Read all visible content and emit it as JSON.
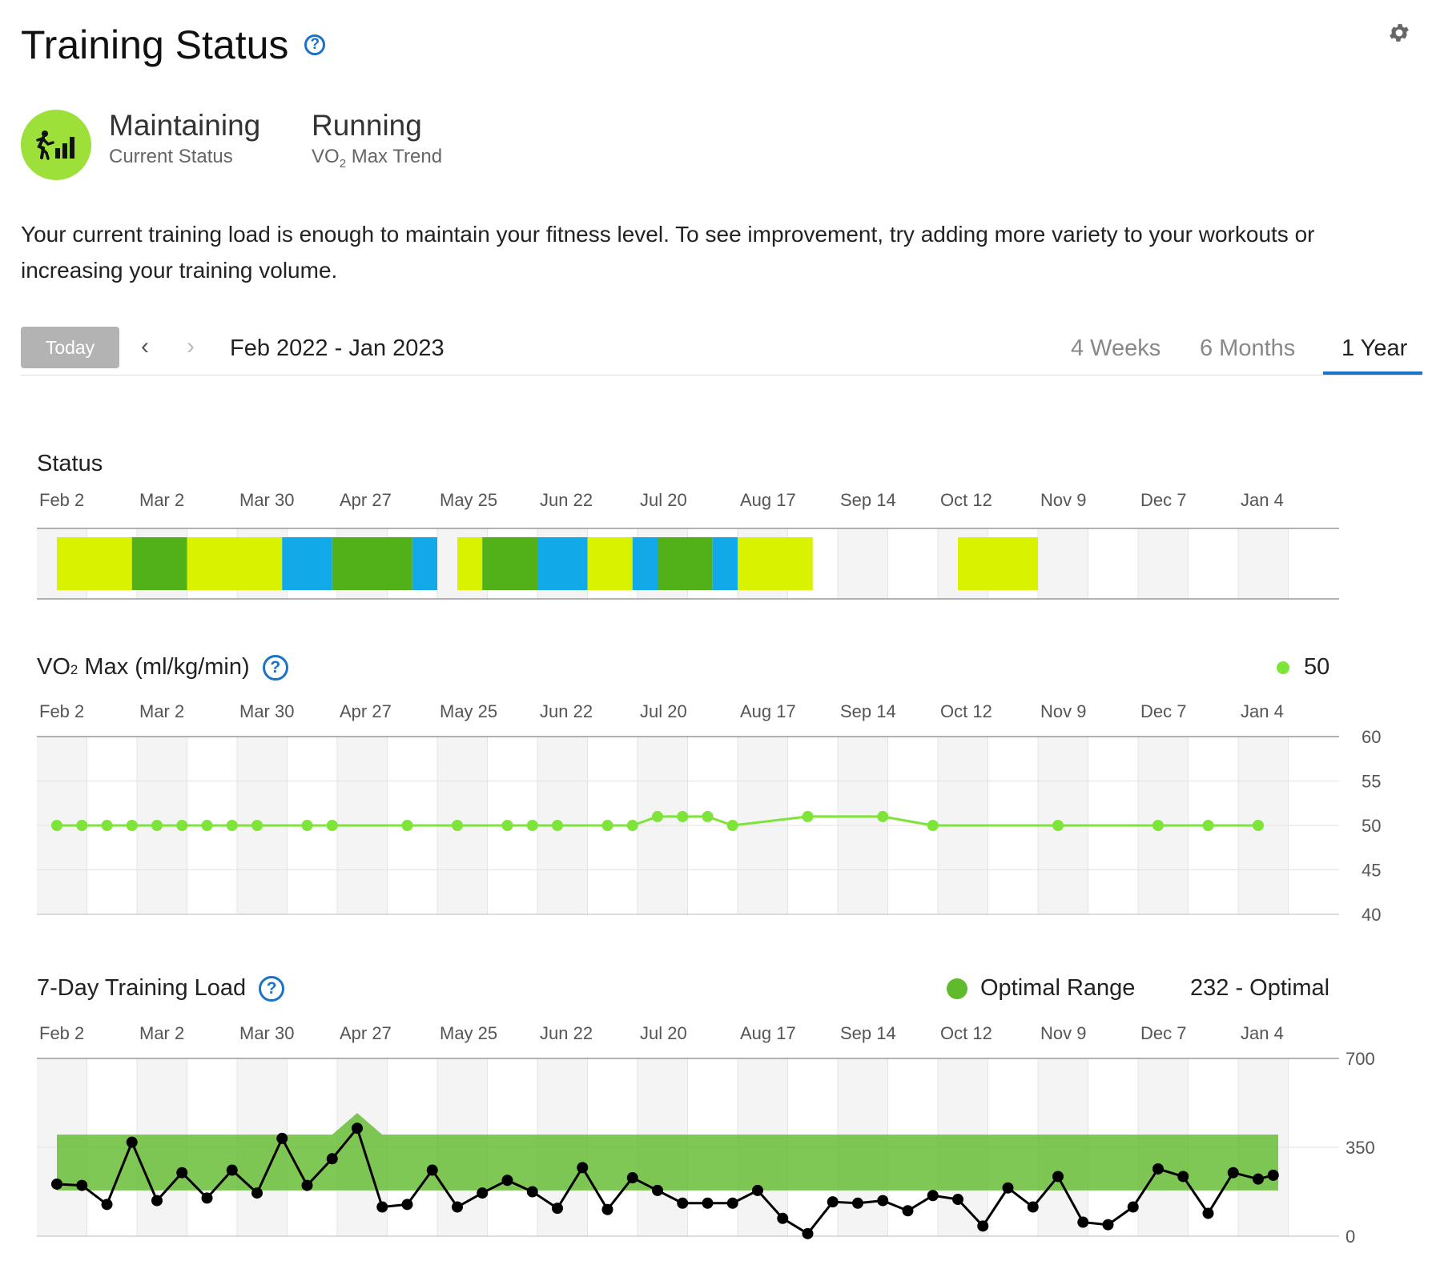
{
  "header": {
    "title": "Training Status",
    "gear_icon": "gear-icon",
    "help_icon": "question-circle-icon"
  },
  "status_summary": {
    "status_value": "Maintaining",
    "status_label": "Current Status",
    "status_icon": "runner-bars-icon",
    "status_color": "#9ee03a",
    "trend_value": "Running",
    "trend_label_prefix": "VO",
    "trend_label_sub": "2",
    "trend_label_suffix": " Max Trend"
  },
  "description": "Your current training load is enough to maintain your fitness level. To see improvement, try adding more variety to your workouts or increasing your training volume.",
  "controls": {
    "today_label": "Today",
    "prev_label": "‹",
    "next_label": "›",
    "range": "Feb 2022 - Jan 2023",
    "tabs": [
      {
        "label": "4 Weeks",
        "active": false
      },
      {
        "label": "6 Months",
        "active": false
      },
      {
        "label": "1 Year",
        "active": true
      }
    ]
  },
  "colors": {
    "accent": "#1a73c7",
    "maintaining": "#d9f200",
    "productive": "#52b018",
    "peaking": "#12a9e8",
    "vo2_line": "#7ee43a",
    "optimal_range": "#5fba2c",
    "load_line": "#000000"
  },
  "sections": {
    "status_title": "Status",
    "vo2_title_prefix": "VO",
    "vo2_title_sub": "2",
    "vo2_title_suffix": " Max (ml/kg/min)",
    "vo2_legend_value": "50",
    "load_title": "7-Day Training Load",
    "load_legend_label": "Optimal Range",
    "load_legend_value": "232 - Optimal"
  },
  "chart_data": [
    {
      "type": "bar",
      "title": "Status",
      "x_ticks": [
        "Feb 2",
        "Mar 2",
        "Mar 30",
        "Apr 27",
        "May 25",
        "Jun 22",
        "Jul 20",
        "Aug 17",
        "Sep 14",
        "Oct 12",
        "Nov 9",
        "Dec 7",
        "Jan 4"
      ],
      "x_unit": "weeks since Feb 2",
      "segments": [
        {
          "start": 0.4,
          "end": 1.9,
          "status": "maintaining"
        },
        {
          "start": 1.9,
          "end": 3.0,
          "status": "productive"
        },
        {
          "start": 3.0,
          "end": 4.9,
          "status": "maintaining"
        },
        {
          "start": 4.9,
          "end": 5.9,
          "status": "peaking"
        },
        {
          "start": 5.9,
          "end": 7.5,
          "status": "productive"
        },
        {
          "start": 7.5,
          "end": 8.0,
          "status": "peaking"
        },
        {
          "start": 8.4,
          "end": 8.9,
          "status": "maintaining"
        },
        {
          "start": 8.9,
          "end": 10.0,
          "status": "productive"
        },
        {
          "start": 10.0,
          "end": 11.0,
          "status": "peaking"
        },
        {
          "start": 11.0,
          "end": 11.9,
          "status": "maintaining"
        },
        {
          "start": 11.9,
          "end": 12.4,
          "status": "peaking"
        },
        {
          "start": 12.4,
          "end": 13.5,
          "status": "productive"
        },
        {
          "start": 13.5,
          "end": 14.0,
          "status": "peaking"
        },
        {
          "start": 14.0,
          "end": 15.5,
          "status": "maintaining"
        },
        {
          "start": 18.4,
          "end": 20.0,
          "status": "maintaining"
        }
      ]
    },
    {
      "type": "line",
      "title": "VO2 Max (ml/kg/min)",
      "x_ticks": [
        "Feb 2",
        "Mar 2",
        "Mar 30",
        "Apr 27",
        "May 25",
        "Jun 22",
        "Jul 20",
        "Aug 17",
        "Sep 14",
        "Oct 12",
        "Nov 9",
        "Dec 7",
        "Jan 4"
      ],
      "x_unit": "weeks since Feb 2",
      "ylim": [
        40,
        60
      ],
      "y_ticks": [
        40,
        45,
        50,
        55,
        60
      ],
      "points": [
        [
          0.4,
          50
        ],
        [
          0.9,
          50
        ],
        [
          1.4,
          50
        ],
        [
          1.9,
          50
        ],
        [
          2.4,
          50
        ],
        [
          2.9,
          50
        ],
        [
          3.4,
          50
        ],
        [
          3.9,
          50
        ],
        [
          4.4,
          50
        ],
        [
          5.4,
          50
        ],
        [
          5.9,
          50
        ],
        [
          7.4,
          50
        ],
        [
          8.4,
          50
        ],
        [
          9.4,
          50
        ],
        [
          9.9,
          50
        ],
        [
          10.4,
          50
        ],
        [
          11.4,
          50
        ],
        [
          11.9,
          50
        ],
        [
          12.4,
          51
        ],
        [
          12.9,
          51
        ],
        [
          13.4,
          51
        ],
        [
          13.9,
          50
        ],
        [
          15.4,
          51
        ],
        [
          16.9,
          51
        ],
        [
          17.9,
          50
        ],
        [
          20.4,
          50
        ],
        [
          22.4,
          50
        ],
        [
          23.4,
          50
        ],
        [
          24.4,
          50
        ]
      ],
      "legend_value": 50
    },
    {
      "type": "line",
      "title": "7-Day Training Load",
      "x_ticks": [
        "Feb 2",
        "Mar 2",
        "Mar 30",
        "Apr 27",
        "May 25",
        "Jun 22",
        "Jul 20",
        "Aug 17",
        "Sep 14",
        "Oct 12",
        "Nov 9",
        "Dec 7",
        "Jan 4"
      ],
      "x_unit": "weeks since Feb 2",
      "ylim": [
        0,
        700
      ],
      "y_ticks": [
        0,
        350,
        700
      ],
      "optimal_range": {
        "x": [
          0.4,
          5.9,
          6.4,
          6.9,
          24.8
        ],
        "low": [
          180,
          180,
          180,
          180,
          180
        ],
        "high": [
          400,
          400,
          485,
          400,
          400
        ]
      },
      "points": [
        [
          0.4,
          205
        ],
        [
          0.9,
          200
        ],
        [
          1.4,
          125
        ],
        [
          1.9,
          370
        ],
        [
          2.4,
          140
        ],
        [
          2.9,
          250
        ],
        [
          3.4,
          150
        ],
        [
          3.9,
          260
        ],
        [
          4.4,
          170
        ],
        [
          4.9,
          385
        ],
        [
          5.4,
          200
        ],
        [
          5.9,
          305
        ],
        [
          6.4,
          425
        ],
        [
          6.9,
          115
        ],
        [
          7.4,
          125
        ],
        [
          7.9,
          260
        ],
        [
          8.4,
          115
        ],
        [
          8.9,
          170
        ],
        [
          9.4,
          220
        ],
        [
          9.9,
          175
        ],
        [
          10.4,
          110
        ],
        [
          10.9,
          270
        ],
        [
          11.4,
          105
        ],
        [
          11.9,
          230
        ],
        [
          12.4,
          180
        ],
        [
          12.9,
          130
        ],
        [
          13.4,
          130
        ],
        [
          13.9,
          130
        ],
        [
          14.4,
          180
        ],
        [
          14.9,
          70
        ],
        [
          15.4,
          10
        ],
        [
          15.9,
          135
        ],
        [
          16.4,
          130
        ],
        [
          16.9,
          140
        ],
        [
          17.4,
          100
        ],
        [
          17.9,
          160
        ],
        [
          18.4,
          145
        ],
        [
          18.9,
          40
        ],
        [
          19.4,
          190
        ],
        [
          19.9,
          115
        ],
        [
          20.4,
          235
        ],
        [
          20.9,
          55
        ],
        [
          21.4,
          45
        ],
        [
          21.9,
          115
        ],
        [
          22.4,
          265
        ],
        [
          22.9,
          235
        ],
        [
          23.4,
          90
        ],
        [
          23.9,
          250
        ],
        [
          24.4,
          225
        ],
        [
          24.7,
          240
        ]
      ],
      "legend_label": "Optimal Range",
      "legend_value": "232 - Optimal"
    }
  ]
}
